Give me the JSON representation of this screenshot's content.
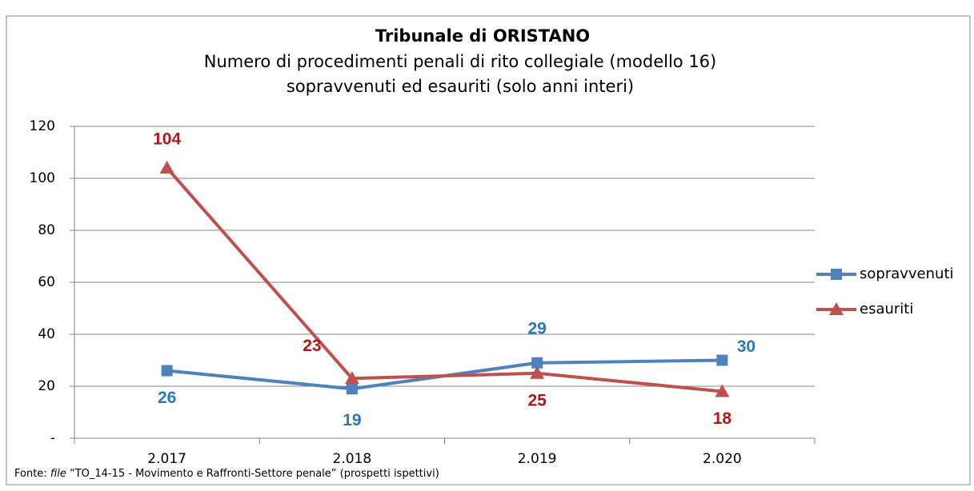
{
  "chart_data": {
    "type": "line",
    "title": "Tribunale di ORISTANO",
    "subtitle": [
      "Numero di procedimenti penali di rito collegiale (modello 16)",
      "sopravvenuti ed esauriti (solo anni interi)"
    ],
    "categories": [
      "2.017",
      "2.018",
      "2.019",
      "2.020"
    ],
    "series": [
      {
        "name": "sopravvenuti",
        "color": "#4f81bd",
        "label_color": "#2878bf",
        "marker": "square",
        "values": [
          26,
          19,
          29,
          30
        ]
      },
      {
        "name": "esauriti",
        "color": "#c0504d",
        "label_color": "#b01818",
        "marker": "triangle",
        "values": [
          104,
          23,
          25,
          18
        ]
      }
    ],
    "ylim": [
      0,
      120
    ],
    "yticks": [
      {
        "value": 0,
        "label": "-"
      },
      20,
      40,
      60,
      80,
      100,
      120
    ],
    "grid": true,
    "legend": "right",
    "source": {
      "prefix": "Fonte: ",
      "italic": "file",
      "rest": " “TO_14-15 - Movimento e Raffronti-Settore penale” (prospetti ispettivi)"
    }
  }
}
